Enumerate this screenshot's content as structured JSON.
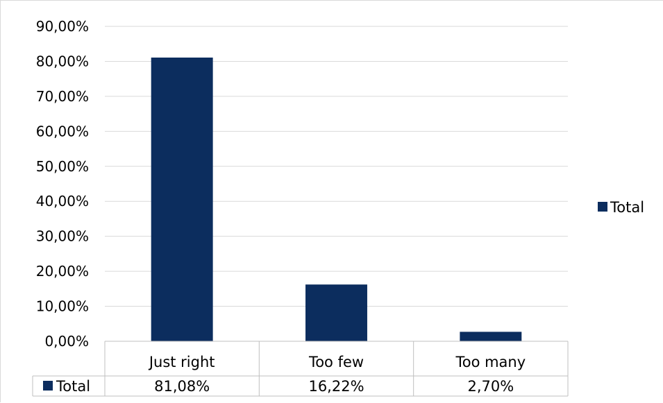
{
  "chart_data": {
    "type": "bar",
    "categories": [
      "Just right",
      "Too few",
      "Too many"
    ],
    "series": [
      {
        "name": "Total",
        "values": [
          81.08,
          16.22,
          2.7
        ],
        "labels": [
          "81,08%",
          "16,22%",
          "2,70%"
        ],
        "color": "#0c2d5e"
      }
    ],
    "ylim": [
      0,
      90
    ],
    "yticks": [
      0,
      10,
      20,
      30,
      40,
      50,
      60,
      70,
      80,
      90
    ],
    "ytick_labels": [
      "0,00%",
      "10,00%",
      "20,00%",
      "30,00%",
      "40,00%",
      "50,00%",
      "60,00%",
      "70,00%",
      "80,00%",
      "90,00%"
    ],
    "grid": true,
    "legend": {
      "position": "right",
      "label": "Total"
    },
    "data_table": true,
    "colors": {
      "bar": "#0c2d5e",
      "gridline": "#d9d9d9",
      "table_border": "#bfbfbf"
    }
  }
}
